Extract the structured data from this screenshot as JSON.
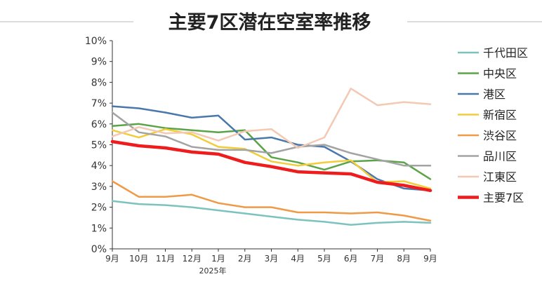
{
  "chart_data": {
    "type": "line",
    "title": "主要7区潜在空室率推移",
    "xlabel": "",
    "ylabel": "",
    "year_label": "2025年",
    "categories": [
      "9月",
      "10月",
      "11月",
      "12月",
      "1月",
      "2月",
      "3月",
      "4月",
      "5月",
      "6月",
      "7月",
      "8月",
      "9月"
    ],
    "ylim": [
      0,
      10
    ],
    "ytick_labels": [
      "0%",
      "1%",
      "2%",
      "3%",
      "4%",
      "5%",
      "6%",
      "7%",
      "8%",
      "9%",
      "10%"
    ],
    "grid": false,
    "legend_position": "right",
    "series": [
      {
        "name": "千代田区",
        "color": "#7cc3be",
        "width": 2.5,
        "values": [
          2.3,
          2.15,
          2.1,
          2.0,
          1.85,
          1.7,
          1.55,
          1.4,
          1.3,
          1.15,
          1.25,
          1.3,
          1.25
        ]
      },
      {
        "name": "中央区",
        "color": "#5aa347",
        "width": 2.5,
        "values": [
          5.9,
          6.0,
          5.8,
          5.7,
          5.6,
          5.7,
          4.4,
          4.15,
          3.8,
          4.2,
          4.25,
          4.15,
          3.35
        ]
      },
      {
        "name": "港区",
        "color": "#4a78ab",
        "width": 2.5,
        "values": [
          6.85,
          6.75,
          6.55,
          6.3,
          6.4,
          5.25,
          5.35,
          5.0,
          4.9,
          4.2,
          3.35,
          2.9,
          2.8
        ]
      },
      {
        "name": "新宿区",
        "color": "#f2cd3a",
        "width": 2.5,
        "values": [
          5.7,
          5.35,
          5.75,
          5.5,
          4.9,
          4.8,
          4.2,
          4.0,
          4.15,
          4.25,
          3.2,
          3.25,
          2.9
        ]
      },
      {
        "name": "渋谷区",
        "color": "#ee9a46",
        "width": 2.5,
        "values": [
          3.25,
          2.5,
          2.5,
          2.6,
          2.2,
          2.0,
          2.0,
          1.75,
          1.75,
          1.7,
          1.75,
          1.6,
          1.35
        ]
      },
      {
        "name": "品川区",
        "color": "#a3a3a3",
        "width": 2.5,
        "values": [
          6.55,
          5.6,
          5.4,
          4.9,
          4.75,
          4.75,
          4.6,
          4.9,
          5.0,
          4.6,
          4.3,
          4.0,
          4.0
        ]
      },
      {
        "name": "江東区",
        "color": "#f4c9b3",
        "width": 2.5,
        "values": [
          5.4,
          5.85,
          5.55,
          5.6,
          5.2,
          5.65,
          5.75,
          4.85,
          5.35,
          7.7,
          6.9,
          7.05,
          6.95
        ]
      },
      {
        "name": "主要7区",
        "color": "#ee1c1c",
        "width": 4.5,
        "values": [
          5.15,
          4.95,
          4.85,
          4.65,
          4.55,
          4.15,
          3.95,
          3.7,
          3.65,
          3.6,
          3.2,
          3.05,
          2.8
        ]
      }
    ]
  }
}
